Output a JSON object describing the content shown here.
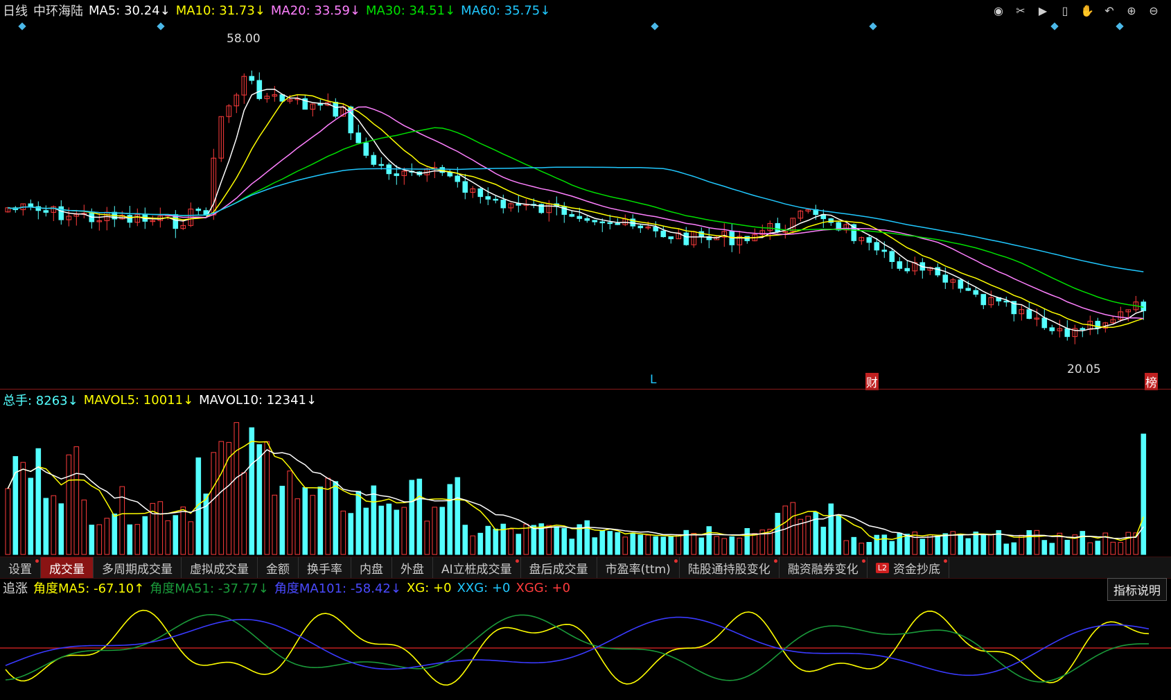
{
  "main_header": {
    "period": "日线",
    "stock": "中环海陆",
    "ma5": "MA5: 30.24↓",
    "ma10": "MA10: 31.73↓",
    "ma20": "MA20: 33.59↓",
    "ma30": "MA30: 34.51↓",
    "ma60": "MA60: 35.75↓"
  },
  "toolbar": [
    "eye-icon",
    "scissors-icon",
    "play-icon",
    "lock-icon",
    "hand-icon",
    "undo-icon",
    "zoom-in-icon",
    "zoom-out-icon"
  ],
  "price_labels": {
    "high": "58.00",
    "low": "20.05"
  },
  "markers": {
    "l": "L",
    "cai": "财",
    "bang": "榜"
  },
  "volume_header": {
    "total": "总手: 8263↓",
    "mavol5": "MAVOL5: 10011↓",
    "mavol10": "MAVOL10: 12341↓"
  },
  "tabs": [
    {
      "label": "设置",
      "dot": true
    },
    {
      "label": "成交量",
      "active": true
    },
    {
      "label": "多周期成交量"
    },
    {
      "label": "虚拟成交量"
    },
    {
      "label": "金额"
    },
    {
      "label": "换手率"
    },
    {
      "label": "内盘"
    },
    {
      "label": "外盘"
    },
    {
      "label": "AI立桩成交量",
      "dot": true
    },
    {
      "label": "盘后成交量"
    },
    {
      "label": "市盈率(ttm)",
      "dot": true
    },
    {
      "label": "陆股通持股变化",
      "dot": true
    },
    {
      "label": "融资融券变化",
      "dot": true
    },
    {
      "label": "资金抄底",
      "dot": true,
      "badge": "L2"
    }
  ],
  "indicator_header": {
    "name": "追涨",
    "a5": "角度MA5: -67.10↑",
    "a51": "角度MA51: -37.77↓",
    "a101": "角度MA101: -58.42↓",
    "xg": "XG: +0",
    "xxg": "XXG: +0",
    "xgg": "XGG: +0"
  },
  "explain_button": "指标说明",
  "colors": {
    "up": "#ff3c3c",
    "down": "#54ffff",
    "ma5": "#ffffff",
    "ma10": "#ffff00",
    "ma20": "#ff80ff",
    "ma30": "#00e000",
    "ma60": "#20c8ff",
    "blue": "#3a3aff"
  }
}
